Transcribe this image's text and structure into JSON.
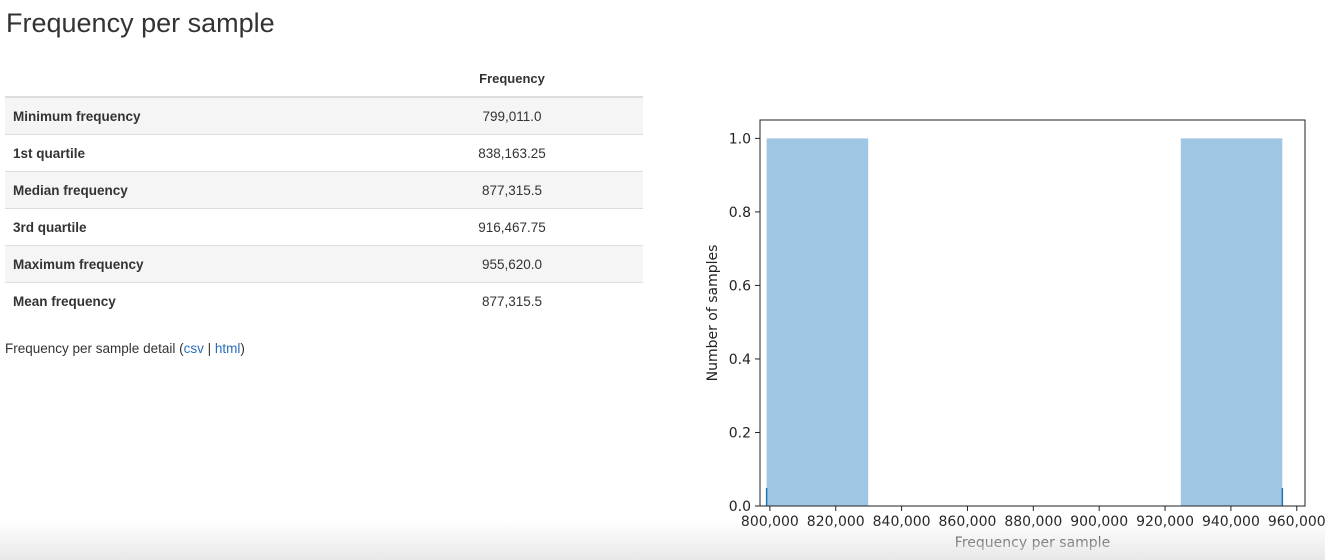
{
  "page": {
    "title": "Frequency per sample"
  },
  "stats_table": {
    "header": "Frequency",
    "rows": [
      {
        "label": "Minimum frequency",
        "value": "799,011.0"
      },
      {
        "label": "1st quartile",
        "value": "838,163.25"
      },
      {
        "label": "Median frequency",
        "value": "877,315.5"
      },
      {
        "label": "3rd quartile",
        "value": "916,467.75"
      },
      {
        "label": "Maximum frequency",
        "value": "955,620.0"
      },
      {
        "label": "Mean frequency",
        "value": "877,315.5"
      }
    ]
  },
  "detail": {
    "prefix": "Frequency per sample detail (",
    "csv_link": "csv",
    "separator": " | ",
    "html_link": "html",
    "suffix": ")"
  },
  "colors": {
    "bar": "#9fc7e3",
    "rug": "#1f77b4",
    "link": "#2a6ebb"
  },
  "chart_data": {
    "type": "bar",
    "xlabel": "Frequency per sample",
    "ylabel": "Number of samples",
    "xlim": [
      797000,
      962500
    ],
    "ylim": [
      0.0,
      1.05
    ],
    "xticks": [
      800000,
      820000,
      840000,
      860000,
      880000,
      900000,
      920000,
      940000,
      960000
    ],
    "xtick_labels": [
      "800,000",
      "820,000",
      "840,000",
      "860,000",
      "880,000",
      "900,000",
      "920,000",
      "940,000",
      "960,000"
    ],
    "yticks": [
      0.0,
      0.2,
      0.4,
      0.6,
      0.8,
      1.0
    ],
    "ytick_labels": [
      "0.0",
      "0.2",
      "0.4",
      "0.6",
      "0.8",
      "1.0"
    ],
    "bins": [
      {
        "start": 799011.0,
        "end": 829855.0,
        "value": 1.0
      },
      {
        "start": 924776.0,
        "end": 955620.0,
        "value": 1.0
      }
    ],
    "rug": [
      799011.0,
      955620.0
    ],
    "grid": false
  }
}
